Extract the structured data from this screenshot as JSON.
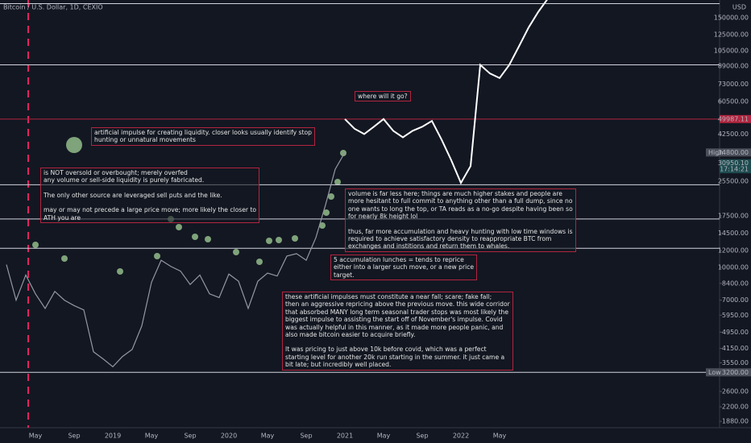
{
  "chart_data": {
    "type": "line",
    "title": "Bitcoin / U.S. Dollar, 1D, CEXIO",
    "currency": "USD",
    "log_scale": true,
    "categories": [
      null,
      null,
      null,
      "May",
      null,
      null,
      null,
      "Sep",
      null,
      null,
      null,
      "2019",
      null,
      null,
      null,
      "May",
      null,
      null,
      null,
      "Sep",
      null,
      null,
      null,
      "2020",
      null,
      null,
      null,
      "May",
      null,
      null,
      null,
      "Sep",
      null,
      null,
      null,
      "2021",
      null,
      null,
      null,
      "May",
      null,
      null,
      null,
      "Sep",
      null,
      null,
      null,
      "2022",
      null,
      null,
      null,
      "May",
      null,
      null,
      null,
      null,
      null
    ],
    "series": [
      {
        "color": "#9598a1",
        "values": [
          10300,
          7000,
          9200,
          7500,
          6400,
          7700,
          7000,
          6600,
          6300,
          4000,
          3700,
          3400,
          3800,
          4100,
          5300,
          8500,
          10800,
          10100,
          9600,
          8300,
          9200,
          7500,
          7200,
          9300,
          8600,
          6400,
          8600,
          9400,
          9100,
          11300,
          11600,
          10800,
          13800,
          19700,
          29000,
          34800,
          null,
          null,
          null,
          null,
          null,
          null,
          null,
          null,
          null,
          null,
          null,
          null,
          null,
          null,
          null,
          null,
          null,
          null,
          null,
          null,
          null
        ]
      },
      {
        "color": "#ffffff",
        "values": [
          null,
          null,
          null,
          null,
          null,
          null,
          null,
          null,
          null,
          null,
          null,
          null,
          null,
          null,
          null,
          null,
          null,
          null,
          null,
          null,
          null,
          null,
          null,
          null,
          null,
          null,
          null,
          null,
          null,
          null,
          null,
          null,
          null,
          null,
          null,
          49987,
          45000,
          42500,
          46000,
          49987,
          44000,
          41000,
          44000,
          46000,
          49000,
          40000,
          32000,
          25000,
          30000,
          90000,
          82000,
          78000,
          90000,
          110000,
          135000,
          160000,
          185000
        ]
      }
    ],
    "ylim": [
      1770,
      182000
    ],
    "yticks": [
      {
        "value": 150000,
        "label": "150000.00"
      },
      {
        "value": 125000,
        "label": "125000.00"
      },
      {
        "value": 105000,
        "label": "105000.00"
      },
      {
        "value": 89000,
        "label": "89000.00"
      },
      {
        "value": 73000,
        "label": "73000.00"
      },
      {
        "value": 60500,
        "label": "60500.00"
      },
      {
        "value": 42500,
        "label": "42500.00"
      },
      {
        "value": 25500,
        "label": "25500.00"
      },
      {
        "value": 17500,
        "label": "17500.00"
      },
      {
        "value": 14500,
        "label": "14500.00"
      },
      {
        "value": 12000,
        "label": "12000.00"
      },
      {
        "value": 10000,
        "label": "10000.00"
      },
      {
        "value": 8400,
        "label": "8400.00"
      },
      {
        "value": 7000,
        "label": "7000.00"
      },
      {
        "value": 5950,
        "label": "5950.00"
      },
      {
        "value": 4950,
        "label": "4950.00"
      },
      {
        "value": 4150,
        "label": "4150.00"
      },
      {
        "value": 3550,
        "label": "3550.00"
      },
      {
        "value": 2600,
        "label": "2600.00"
      },
      {
        "value": 2200,
        "label": "2200.00"
      },
      {
        "value": 1880,
        "label": "1880.00"
      }
    ],
    "levels": [
      {
        "value": 175000,
        "color": "#d1d4dc"
      },
      {
        "value": 90000,
        "color": "#d1d4dc"
      },
      {
        "value": 49987.11,
        "color": "#b2243e"
      },
      {
        "value": 24500,
        "color": "#d1d4dc"
      },
      {
        "value": 16900,
        "color": "#d1d4dc"
      },
      {
        "value": 12300,
        "color": "#d1d4dc"
      },
      {
        "value": 3200,
        "color": "#d1d4dc"
      }
    ],
    "tags": [
      {
        "value": 49987.11,
        "text": "49987.11",
        "color": "#b2243e"
      },
      {
        "value": 34800,
        "label": "High",
        "text": "34800.00",
        "color": "#4a4e59"
      },
      {
        "value": 30950.1,
        "text": "30950.10",
        "color": "#1e4b4f"
      },
      {
        "value": 29000,
        "text": "17:14:21",
        "color": "#1e4b4f"
      },
      {
        "value": 3200,
        "label": "Low",
        "text": "3200.00",
        "color": "#4a4e59"
      }
    ],
    "annotations": [
      {
        "lines": [
          "where will it go?"
        ]
      },
      {
        "lines": [
          "artificial impulse for creating liquidity. closer looks usually identify stop",
          "hunting or unnatural movements"
        ]
      },
      {
        "lines": [
          "is NOT oversold or overbought; merely overfed",
          "any volume or sell-side liquidity is purely fabricated.",
          "The only other source are leveraged sell puts and the like.",
          "may or may not precede a large price move; more likely the closer to",
          "ATH you are"
        ]
      },
      {
        "lines": [
          "volume is far less here; things are much higher stakes and people are",
          "more hesitant to full commit to anything other than a full dump, since no",
          "one wants to long the top, or TA reads as a no-go despite having been so",
          "for nearly 8k height lol",
          "thus, far more accumulation and heavy hunting with low time windows is",
          "required to achieve satisfactory density to reappropriate BTC from",
          "exchanges and institions and return them to whales."
        ]
      },
      {
        "lines": [
          "5 accumulation lunches = tends to reprice",
          "either into a larger such move, or a new price",
          "target."
        ]
      },
      {
        "lines": [
          "these artificial impulses must constitute a near fall; scare; fake fall;",
          "then an aggressive repricing above the previous move. this wide  corridor",
          "that absorbed MANY long term seasonal trader stops was most likely the",
          "biggest impulse to assisting the start off of November's impulse.  Covid",
          "was actually helpful in this manner, as it made more people panic, and",
          "also made bitcoin easier to acquire briefly.",
          "It was pricing to just above 10k before covid, which was a perfect",
          "starting level for another 20k run starting in the summer. it just came a",
          "bit late; but incredibly well placed."
        ]
      }
    ]
  }
}
